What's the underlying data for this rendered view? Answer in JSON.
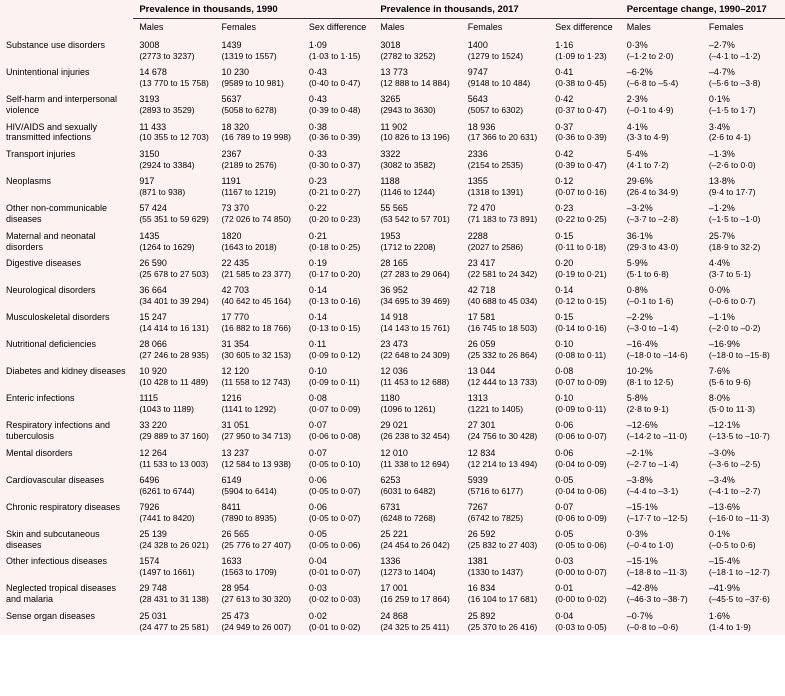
{
  "headers": {
    "group1": "Prevalence in thousands, 1990",
    "group2": "Prevalence in thousands, 2017",
    "group3": "Percentage change, 1990–2017",
    "males": "Males",
    "females": "Females",
    "sexdiff": "Sex difference"
  },
  "rows": [
    {
      "label": "Substance use disorders",
      "m1990": "3008",
      "m1990ci": "(2773 to 3237)",
      "f1990": "1439",
      "f1990ci": "(1319 to 1557)",
      "sd1990": "1·09",
      "sd1990ci": "(1·03 to 1·15)",
      "m2017": "3018",
      "m2017ci": "(2782 to 3252)",
      "f2017": "1400",
      "f2017ci": "(1279 to 1524)",
      "sd2017": "1·16",
      "sd2017ci": "(1·09 to 1·23)",
      "mpct": "0·3%",
      "mpctci": "(–1·2 to 2·0)",
      "fpct": "–2·7%",
      "fpctci": "(–4·1 to –1·2)"
    },
    {
      "label": "Unintentional injuries",
      "m1990": "14 678",
      "m1990ci": "(13 770 to 15 758)",
      "f1990": "10 230",
      "f1990ci": "(9589 to 10 981)",
      "sd1990": "0·43",
      "sd1990ci": "(0·40 to 0·47)",
      "m2017": "13 773",
      "m2017ci": "(12 888 to 14 884)",
      "f2017": "9747",
      "f2017ci": "(9148 to 10 484)",
      "sd2017": "0·41",
      "sd2017ci": "(0·38 to 0·45)",
      "mpct": "–6·2%",
      "mpctci": "(–6·8 to –5·4)",
      "fpct": "–4·7%",
      "fpctci": "(–5·6 to –3·8)"
    },
    {
      "label": "Self-harm and interpersonal violence",
      "m1990": "3193",
      "m1990ci": "(2893 to 3529)",
      "f1990": "5637",
      "f1990ci": "(5058 to 6278)",
      "sd1990": "0·43",
      "sd1990ci": "(0·39 to 0·48)",
      "m2017": "3265",
      "m2017ci": "(2943 to 3630)",
      "f2017": "5643",
      "f2017ci": "(5057 to 6302)",
      "sd2017": "0·42",
      "sd2017ci": "(0·37 to 0·47)",
      "mpct": "2·3%",
      "mpctci": "(–0·1 to 4·9)",
      "fpct": "0·1%",
      "fpctci": "(–1·5 to 1·7)"
    },
    {
      "label": "HIV/AIDS and sexually transmitted infections",
      "m1990": "11 433",
      "m1990ci": "(10 355 to 12 703)",
      "f1990": "18 320",
      "f1990ci": "(16 789 to 19 998)",
      "sd1990": "0·38",
      "sd1990ci": "(0·36 to 0·39)",
      "m2017": "11 902",
      "m2017ci": "(10 826 to 13 196)",
      "f2017": "18 936",
      "f2017ci": "(17 366 to 20 631)",
      "sd2017": "0·37",
      "sd2017ci": "(0·36 to 0·39)",
      "mpct": "4·1%",
      "mpctci": "(3·3 to 4·9)",
      "fpct": "3·4%",
      "fpctci": "(2·6 to 4·1)"
    },
    {
      "label": "Transport injuries",
      "m1990": "3150",
      "m1990ci": "(2924 to 3384)",
      "f1990": "2367",
      "f1990ci": "(2189 to 2576)",
      "sd1990": "0·33",
      "sd1990ci": "(0·30 to 0·37)",
      "m2017": "3322",
      "m2017ci": "(3082 to 3582)",
      "f2017": "2336",
      "f2017ci": "(2154 to 2535)",
      "sd2017": "0·42",
      "sd2017ci": "(0·39 to 0·47)",
      "mpct": "5·4%",
      "mpctci": "(4·1 to 7·2)",
      "fpct": "–1·3%",
      "fpctci": "(–2·6 to 0·0)"
    },
    {
      "label": "Neoplasms",
      "m1990": "917",
      "m1990ci": "(871 to 938)",
      "f1990": "1191",
      "f1990ci": "(1167 to 1219)",
      "sd1990": "0·23",
      "sd1990ci": "(0·21 to 0·27)",
      "m2017": "1188",
      "m2017ci": "(1146 to 1244)",
      "f2017": "1355",
      "f2017ci": "(1318 to 1391)",
      "sd2017": "0·12",
      "sd2017ci": "(0·07 to 0·16)",
      "mpct": "29·6%",
      "mpctci": "(26·4 to 34·9)",
      "fpct": "13·8%",
      "fpctci": "(9·4 to 17·7)"
    },
    {
      "label": "Other non-communicable diseases",
      "m1990": "57 424",
      "m1990ci": "(55 351 to 59 629)",
      "f1990": "73 370",
      "f1990ci": "(72 026 to 74 850)",
      "sd1990": "0·22",
      "sd1990ci": "(0·20 to 0·23)",
      "m2017": "55 565",
      "m2017ci": "(53 542 to 57 701)",
      "f2017": "72 470",
      "f2017ci": "(71 183 to 73 891)",
      "sd2017": "0·23",
      "sd2017ci": "(0·22 to 0·25)",
      "mpct": "–3·2%",
      "mpctci": "(–3·7 to –2·8)",
      "fpct": "–1·2%",
      "fpctci": "(–1·5 to –1·0)"
    },
    {
      "label": "Maternal and neonatal disorders",
      "m1990": "1435",
      "m1990ci": "(1264 to 1629)",
      "f1990": "1820",
      "f1990ci": "(1643 to 2018)",
      "sd1990": "0·21",
      "sd1990ci": "(0·18 to 0·25)",
      "m2017": "1953",
      "m2017ci": "(1712 to 2208)",
      "f2017": "2288",
      "f2017ci": "(2027 to 2586)",
      "sd2017": "0·15",
      "sd2017ci": "(0·11 to 0·18)",
      "mpct": "36·1%",
      "mpctci": "(29·3 to 43·0)",
      "fpct": "25·7%",
      "fpctci": "(18·9 to 32·2)"
    },
    {
      "label": "Digestive diseases",
      "m1990": "26 590",
      "m1990ci": "(25 678 to 27 503)",
      "f1990": "22 435",
      "f1990ci": "(21 585 to 23 377)",
      "sd1990": "0·19",
      "sd1990ci": "(0·17 to 0·20)",
      "m2017": "28 165",
      "m2017ci": "(27 283 to 29 064)",
      "f2017": "23 417",
      "f2017ci": "(22 581 to 24 342)",
      "sd2017": "0·20",
      "sd2017ci": "(0·19 to 0·21)",
      "mpct": "5·9%",
      "mpctci": "(5·1 to 6·8)",
      "fpct": "4·4%",
      "fpctci": "(3·7 to 5·1)"
    },
    {
      "label": "Neurological disorders",
      "m1990": "36 664",
      "m1990ci": "(34 401 to 39 294)",
      "f1990": "42 703",
      "f1990ci": "(40 642 to 45 164)",
      "sd1990": "0·14",
      "sd1990ci": "(0·13 to 0·16)",
      "m2017": "36 952",
      "m2017ci": "(34 695 to 39 469)",
      "f2017": "42 718",
      "f2017ci": "(40 688 to 45 034)",
      "sd2017": "0·14",
      "sd2017ci": "(0·12 to 0·15)",
      "mpct": "0·8%",
      "mpctci": "(–0·1 to 1·6)",
      "fpct": "0·0%",
      "fpctci": "(–0·6 to 0·7)"
    },
    {
      "label": "Musculoskeletal disorders",
      "m1990": "15 247",
      "m1990ci": "(14 414 to 16 131)",
      "f1990": "17 770",
      "f1990ci": "(16 882 to 18 766)",
      "sd1990": "0·14",
      "sd1990ci": "(0·13 to 0·15)",
      "m2017": "14 918",
      "m2017ci": "(14 143 to 15 761)",
      "f2017": "17 581",
      "f2017ci": "(16 745 to 18 503)",
      "sd2017": "0·15",
      "sd2017ci": "(0·14 to 0·16)",
      "mpct": "–2·2%",
      "mpctci": "(–3·0 to –1·4)",
      "fpct": "–1·1%",
      "fpctci": "(–2·0 to –0·2)"
    },
    {
      "label": "Nutritional deficiencies",
      "m1990": "28 066",
      "m1990ci": "(27 246 to 28 935)",
      "f1990": "31 354",
      "f1990ci": "(30 605 to 32 153)",
      "sd1990": "0·11",
      "sd1990ci": "(0·09 to 0·12)",
      "m2017": "23 473",
      "m2017ci": "(22 648 to 24 309)",
      "f2017": "26 059",
      "f2017ci": "(25 332 to 26 864)",
      "sd2017": "0·10",
      "sd2017ci": "(0·08 to 0·11)",
      "mpct": "–16·4%",
      "mpctci": "(–18·0 to –14·6)",
      "fpct": "–16·9%",
      "fpctci": "(–18·0 to –15·8)"
    },
    {
      "label": "Diabetes and kidney diseases",
      "m1990": "10 920",
      "m1990ci": "(10 428 to 11 489)",
      "f1990": "12 120",
      "f1990ci": "(11 558 to 12 743)",
      "sd1990": "0·10",
      "sd1990ci": "(0·09 to 0·11)",
      "m2017": "12 036",
      "m2017ci": "(11 453 to 12 688)",
      "f2017": "13 044",
      "f2017ci": "(12 444 to 13 733)",
      "sd2017": "0·08",
      "sd2017ci": "(0·07 to 0·09)",
      "mpct": "10·2%",
      "mpctci": "(8·1 to 12·5)",
      "fpct": "7·6%",
      "fpctci": "(5·6 to 9·6)"
    },
    {
      "label": "Enteric infections",
      "m1990": "1115",
      "m1990ci": "(1043 to 1189)",
      "f1990": "1216",
      "f1990ci": "(1141 to 1292)",
      "sd1990": "0·08",
      "sd1990ci": "(0·07 to 0·09)",
      "m2017": "1180",
      "m2017ci": "(1096 to 1261)",
      "f2017": "1313",
      "f2017ci": "(1221 to 1405)",
      "sd2017": "0·10",
      "sd2017ci": "(0·09 to 0·11)",
      "mpct": "5·8%",
      "mpctci": "(2·8 to 9·1)",
      "fpct": "8·0%",
      "fpctci": "(5·0 to 11·3)"
    },
    {
      "label": "Respiratory infections and tuberculosis",
      "m1990": "33 220",
      "m1990ci": "(29 889 to 37 160)",
      "f1990": "31 051",
      "f1990ci": "(27 950 to 34 713)",
      "sd1990": "0·07",
      "sd1990ci": "(0·06 to 0·08)",
      "m2017": "29 021",
      "m2017ci": "(26 238 to 32 454)",
      "f2017": "27 301",
      "f2017ci": "(24 756 to 30 428)",
      "sd2017": "0·06",
      "sd2017ci": "(0·06 to 0·07)",
      "mpct": "–12·6%",
      "mpctci": "(–14·2 to –11·0)",
      "fpct": "–12·1%",
      "fpctci": "(–13·5 to –10·7)"
    },
    {
      "label": "Mental disorders",
      "m1990": "12 264",
      "m1990ci": "(11 533 to 13 003)",
      "f1990": "13 237",
      "f1990ci": "(12 584 to 13 938)",
      "sd1990": "0·07",
      "sd1990ci": "(0·05 to 0·10)",
      "m2017": "12 010",
      "m2017ci": "(11 338 to 12 694)",
      "f2017": "12 834",
      "f2017ci": "(12 214 to 13 494)",
      "sd2017": "0·06",
      "sd2017ci": "(0·04 to 0·09)",
      "mpct": "–2·1%",
      "mpctci": "(–2·7 to –1·4)",
      "fpct": "–3·0%",
      "fpctci": "(–3·6 to –2·5)"
    },
    {
      "label": "Cardiovascular diseases",
      "m1990": "6496",
      "m1990ci": "(6261 to 6744)",
      "f1990": "6149",
      "f1990ci": "(5904 to 6414)",
      "sd1990": "0·06",
      "sd1990ci": "(0·05 to 0·07)",
      "m2017": "6253",
      "m2017ci": "(6031 to 6482)",
      "f2017": "5939",
      "f2017ci": "(5716 to 6177)",
      "sd2017": "0·05",
      "sd2017ci": "(0·04 to 0·06)",
      "mpct": "–3·8%",
      "mpctci": "(–4·4 to –3·1)",
      "fpct": "–3·4%",
      "fpctci": "(–4·1 to –2·7)"
    },
    {
      "label": "Chronic respiratory diseases",
      "m1990": "7926",
      "m1990ci": "(7441 to 8420)",
      "f1990": "8411",
      "f1990ci": "(7890 to 8935)",
      "sd1990": "0·06",
      "sd1990ci": "(0·05 to 0·07)",
      "m2017": "6731",
      "m2017ci": "(6248 to 7268)",
      "f2017": "7267",
      "f2017ci": "(6742 to 7825)",
      "sd2017": "0·07",
      "sd2017ci": "(0·06 to 0·09)",
      "mpct": "–15·1%",
      "mpctci": "(–17·7 to –12·5)",
      "fpct": "–13·6%",
      "fpctci": "(–16·0 to –11·3)"
    },
    {
      "label": "Skin and subcutaneous diseases",
      "m1990": "25 139",
      "m1990ci": "(24 328 to 26 021)",
      "f1990": "26 565",
      "f1990ci": "(25 776 to 27 407)",
      "sd1990": "0·05",
      "sd1990ci": "(0·05 to 0·06)",
      "m2017": "25 221",
      "m2017ci": "(24 454 to 26 042)",
      "f2017": "26 592",
      "f2017ci": "(25 832 to 27 403)",
      "sd2017": "0·05",
      "sd2017ci": "(0·05 to 0·06)",
      "mpct": "0·3%",
      "mpctci": "(–0·4 to 1·0)",
      "fpct": "0·1%",
      "fpctci": "(–0·5 to 0·6)"
    },
    {
      "label": "Other infectious diseases",
      "m1990": "1574",
      "m1990ci": "(1497 to 1661)",
      "f1990": "1633",
      "f1990ci": "(1563 to 1709)",
      "sd1990": "0·04",
      "sd1990ci": "(0·01 to 0·07)",
      "m2017": "1336",
      "m2017ci": "(1273 to 1404)",
      "f2017": "1381",
      "f2017ci": "(1330 to 1437)",
      "sd2017": "0·03",
      "sd2017ci": "(0·00 to 0·07)",
      "mpct": "–15·1%",
      "mpctci": "(–18·8 to –11·3)",
      "fpct": "–15·4%",
      "fpctci": "(–18·1 to –12·7)"
    },
    {
      "label": "Neglected tropical diseases and malaria",
      "m1990": "29 748",
      "m1990ci": "(28 431 to 31 138)",
      "f1990": "28 954",
      "f1990ci": "(27 613 to 30 320)",
      "sd1990": "0·03",
      "sd1990ci": "(0·02 to 0·03)",
      "m2017": "17 001",
      "m2017ci": "(16 259 to 17 864)",
      "f2017": "16 834",
      "f2017ci": "(16 104 to 17 681)",
      "sd2017": "0·01",
      "sd2017ci": "(0·00 to 0·02)",
      "mpct": "–42·8%",
      "mpctci": "(–46·3 to –38·7)",
      "fpct": "–41·9%",
      "fpctci": "(–45·5 to –37·6)"
    },
    {
      "label": "Sense organ diseases",
      "m1990": "25 031",
      "m1990ci": "(24 477 to 25 581)",
      "f1990": "25 473",
      "f1990ci": "(24 949 to 26 007)",
      "sd1990": "0·02",
      "sd1990ci": "(0·01 to 0·02)",
      "m2017": "24 868",
      "m2017ci": "(24 325 to 25 411)",
      "f2017": "25 892",
      "f2017ci": "(25 370 to 26 416)",
      "sd2017": "0·04",
      "sd2017ci": "(0·03 to 0·05)",
      "mpct": "–0·7%",
      "mpctci": "(–0·8 to –0·6)",
      "fpct": "1·6%",
      "fpctci": "(1·4 to 1·9)"
    }
  ]
}
